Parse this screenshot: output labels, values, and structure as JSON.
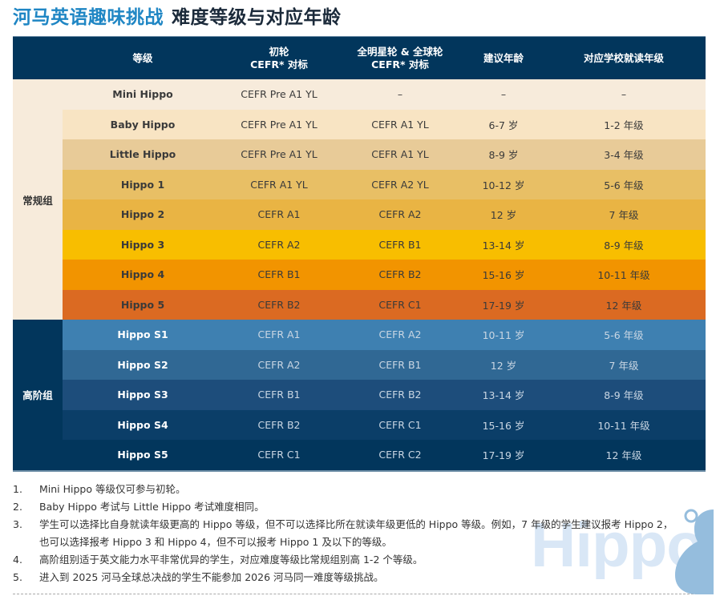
{
  "title": {
    "brand": "河马英语趣味挑战",
    "subtitle": "难度等级与对应年龄"
  },
  "table": {
    "headers": {
      "level": "等级",
      "round1_line1": "初轮",
      "round1_line2": "CEFR* 对标",
      "round2_line1": "全明星轮 & 全球轮",
      "round2_line2": "CEFR* 对标",
      "age": "建议年龄",
      "grade": "对应学校就读年级"
    },
    "groups": [
      {
        "label": "常规组",
        "rows": [
          {
            "level": "Mini Hippo",
            "round1": "CEFR Pre A1 YL",
            "round2": "–",
            "age": "–",
            "grade": "–",
            "color": "#f7ebdb"
          },
          {
            "level": "Baby Hippo",
            "round1": "CEFR Pre A1 YL",
            "round2": "CEFR A1 YL",
            "age": "6-7 岁",
            "grade": "1-2 年级",
            "color": "#f8e4c3"
          },
          {
            "level": "Little Hippo",
            "round1": "CEFR Pre A1 YL",
            "round2": "CEFR A1 YL",
            "age": "8-9 岁",
            "grade": "3-4 年级",
            "color": "#e8cb98"
          },
          {
            "level": "Hippo 1",
            "round1": "CEFR A1 YL",
            "round2": "CEFR A2 YL",
            "age": "10-12 岁",
            "grade": "5-6 年级",
            "color": "#e8bf65"
          },
          {
            "level": "Hippo 2",
            "round1": "CEFR A1",
            "round2": "CEFR A2",
            "age": "12 岁",
            "grade": "7 年级",
            "color": "#e9b444"
          },
          {
            "level": "Hippo 3",
            "round1": "CEFR A2",
            "round2": "CEFR B1",
            "age": "13-14 岁",
            "grade": "8-9 年级",
            "color": "#f8be00"
          },
          {
            "level": "Hippo 4",
            "round1": "CEFR B1",
            "round2": "CEFR B2",
            "age": "15-16 岁",
            "grade": "10-11 年级",
            "color": "#f29400"
          },
          {
            "level": "Hippo 5",
            "round1": "CEFR B2",
            "round2": "CEFR C1",
            "age": "17-19 岁",
            "grade": "12 年级",
            "color": "#db6a22"
          }
        ]
      },
      {
        "label": "高阶组",
        "rows": [
          {
            "level": "Hippo S1",
            "round1": "CEFR A1",
            "round2": "CEFR A2",
            "age": "10-11 岁",
            "grade": "5-6 年级",
            "color": "#3e80b1"
          },
          {
            "level": "Hippo S2",
            "round1": "CEFR A2",
            "round2": "CEFR B1",
            "age": "12 岁",
            "grade": "7 年级",
            "color": "#306894"
          },
          {
            "level": "Hippo S3",
            "round1": "CEFR B1",
            "round2": "CEFR B2",
            "age": "13-14 岁",
            "grade": "8-9 年级",
            "color": "#1d4d7b"
          },
          {
            "level": "Hippo S4",
            "round1": "CEFR B2",
            "round2": "CEFR C1",
            "age": "15-16 岁",
            "grade": "10-11 年级",
            "color": "#0b3e68"
          },
          {
            "level": "Hippo S5",
            "round1": "CEFR C1",
            "round2": "CEFR C2",
            "age": "17-19 岁",
            "grade": "12 年级",
            "color": "#02365c"
          }
        ]
      }
    ]
  },
  "notes": [
    {
      "num": "1.",
      "text": "Mini Hippo 等级仅可参与初轮。"
    },
    {
      "num": "2.",
      "text": "Baby Hippo 考试与 Little Hippo 考试难度相同。"
    },
    {
      "num": "3.",
      "text": "学生可以选择比自身就读年级更高的 Hippo 等级，但不可以选择比所在就读年级更低的 Hippo 等级。例如，7 年级的学生建议报考 Hippo 2，也可以选择报考 Hippo 3 和 Hippo 4，但不可以报考 Hippo 1 及以下的等级。"
    },
    {
      "num": "4.",
      "text": "高阶组别适于英文能力水平非常优异的学生，对应难度等级比常规组别高 1-2 个等级。"
    },
    {
      "num": "5.",
      "text": "进入到 2025 河马全球总决战的学生不能参加 2026 河马同一难度等级挑战。"
    }
  ],
  "watermark": "Hippo"
}
